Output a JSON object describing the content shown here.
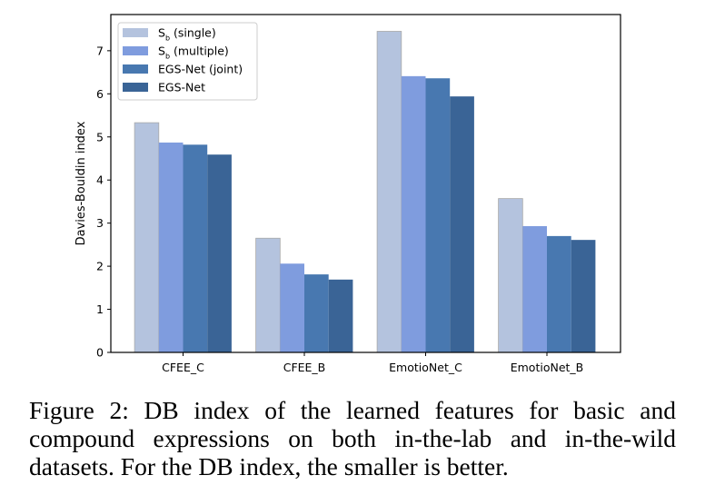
{
  "chart_data": {
    "type": "bar",
    "categories": [
      "CFEE_C",
      "CFEE_B",
      "EmotioNet_C",
      "EmotioNet_B"
    ],
    "series": [
      {
        "name": "S_b (single)",
        "label_main": "S",
        "label_sub": "b",
        "label_rest": " (single)",
        "color": "#b4c3de",
        "values": [
          5.33,
          2.65,
          7.45,
          3.57
        ]
      },
      {
        "name": "S_b (multiple)",
        "label_main": "S",
        "label_sub": "b",
        "label_rest": " (multiple)",
        "color": "#7f9cde",
        "values": [
          4.87,
          2.06,
          6.41,
          2.93
        ]
      },
      {
        "name": "EGS-Net (joint)",
        "label_main": "EGS-Net (joint)",
        "label_sub": "",
        "label_rest": "",
        "color": "#4878b0",
        "values": [
          4.82,
          1.81,
          6.36,
          2.7
        ]
      },
      {
        "name": "EGS-Net",
        "label_main": "EGS-Net",
        "label_sub": "",
        "label_rest": "",
        "color": "#3a6496",
        "values": [
          4.59,
          1.69,
          5.94,
          2.61
        ]
      }
    ],
    "xlabel": "",
    "ylabel": "Davies-Bouldin index",
    "ylim": [
      0,
      7.84
    ],
    "yticks": [
      0,
      1,
      2,
      3,
      4,
      5,
      6,
      7
    ],
    "grid": false,
    "legend": "top-left"
  },
  "caption": "Figure 2: DB index of the learned features for basic and compound expressions on both in-the-lab and in-the-wild datasets. For the DB index, the smaller is better."
}
